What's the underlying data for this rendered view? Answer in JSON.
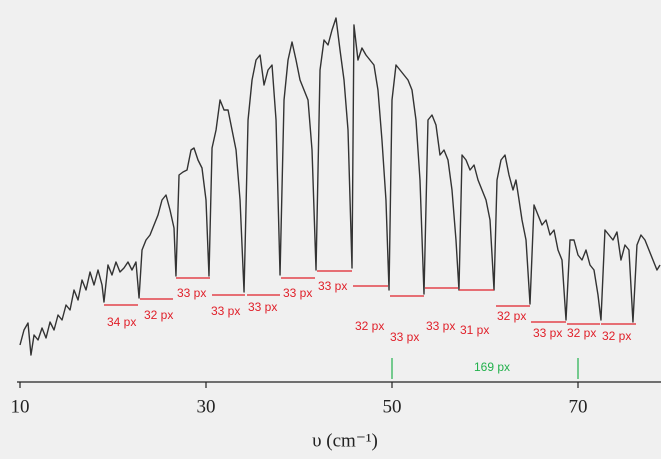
{
  "chart_data": {
    "type": "line",
    "xlabel": "υ (cm⁻¹)",
    "xlim": [
      10,
      79
    ],
    "xticks": [
      10,
      30,
      50,
      70
    ],
    "ylim": [
      0,
      370
    ],
    "color": "#333333",
    "segment_labels": [
      "34 px",
      "32 px",
      "33 px",
      "33 px",
      "33 px",
      "33 px",
      "33 px",
      "32 px",
      "33 px",
      "33 px",
      "31 px",
      "32 px",
      "33 px",
      "32 px",
      "32 px"
    ],
    "reference_label": "169 px",
    "x": [
      10.0,
      10.43,
      10.86,
      11.18,
      11.51,
      11.94,
      12.37,
      12.8,
      13.23,
      13.66,
      14.09,
      14.52,
      14.95,
      15.38,
      15.81,
      16.24,
      16.67,
      17.1,
      17.53,
      17.96,
      18.39,
      18.82,
      19.03,
      19.46,
      19.89,
      20.32,
      20.75,
      21.18,
      21.61,
      22.04,
      22.47,
      22.8,
      23.12,
      23.55,
      23.98,
      24.41,
      24.84,
      25.27,
      25.7,
      26.13,
      26.56,
      26.77,
      27.1,
      27.53,
      27.96,
      28.39,
      28.71,
      29.14,
      29.57,
      30.0,
      30.32,
      30.65,
      31.08,
      31.51,
      31.94,
      32.37,
      32.8,
      33.23,
      33.66,
      34.09,
      34.52,
      34.95,
      35.38,
      35.81,
      36.24,
      36.67,
      37.1,
      37.53,
      37.96,
      38.39,
      38.82,
      39.25,
      39.68,
      40.11,
      40.54,
      40.97,
      41.4,
      41.83,
      42.26,
      42.69,
      43.12,
      43.55,
      43.98,
      44.41,
      44.84,
      45.27,
      45.7,
      45.91,
      46.34,
      46.77,
      47.2,
      47.63,
      48.06,
      48.49,
      48.92,
      49.35,
      49.68,
      50.0,
      50.43,
      50.86,
      51.29,
      51.72,
      52.15,
      52.58,
      53.01,
      53.44,
      53.87,
      54.3,
      54.73,
      55.16,
      55.59,
      56.02,
      56.45,
      56.88,
      57.2,
      57.53,
      57.96,
      58.39,
      58.82,
      59.25,
      59.68,
      60.11,
      60.54,
      60.97,
      61.29,
      61.72,
      62.15,
      62.58,
      63.01,
      63.33,
      63.66,
      63.98,
      64.41,
      64.84,
      65.27,
      65.7,
      66.13,
      66.56,
      66.99,
      67.42,
      67.85,
      68.28,
      68.71,
      69.14,
      69.57,
      70.0,
      70.43,
      70.86,
      71.29,
      71.72,
      72.15,
      72.47,
      72.9,
      73.33,
      73.76,
      74.19,
      74.62,
      75.05,
      75.48,
      75.91,
      76.34,
      76.77,
      77.2,
      77.63,
      78.06,
      78.49,
      78.82
    ],
    "values": [
      37,
      52,
      59,
      27,
      47,
      42,
      54,
      44,
      60,
      52,
      67,
      62,
      77,
      72,
      92,
      82,
      102,
      92,
      110,
      97,
      112,
      97,
      80,
      117,
      107,
      120,
      110,
      114,
      120,
      112,
      120,
      84,
      132,
      142,
      147,
      157,
      167,
      182,
      187,
      172,
      154,
      106,
      207,
      210,
      212,
      232,
      234,
      222,
      214,
      182,
      106,
      234,
      252,
      282,
      272,
      272,
      252,
      232,
      182,
      90,
      262,
      302,
      322,
      327,
      297,
      312,
      317,
      262,
      107,
      282,
      322,
      340,
      322,
      302,
      292,
      282,
      232,
      112,
      312,
      342,
      337,
      352,
      364,
      332,
      302,
      252,
      114,
      357,
      322,
      334,
      327,
      322,
      317,
      292,
      242,
      182,
      92,
      282,
      317,
      312,
      307,
      302,
      292,
      262,
      202,
      88,
      262,
      267,
      257,
      227,
      232,
      222,
      192,
      142,
      92,
      227,
      222,
      212,
      217,
      202,
      192,
      182,
      162,
      92,
      202,
      222,
      227,
      207,
      192,
      202,
      182,
      162,
      142,
      78,
      177,
      167,
      157,
      162,
      147,
      152,
      132,
      122,
      62,
      142,
      142,
      127,
      122,
      132,
      117,
      112,
      87,
      62,
      152,
      147,
      142,
      150,
      122,
      137,
      132,
      60,
      137,
      147,
      142,
      132,
      122,
      112,
      117
    ]
  }
}
